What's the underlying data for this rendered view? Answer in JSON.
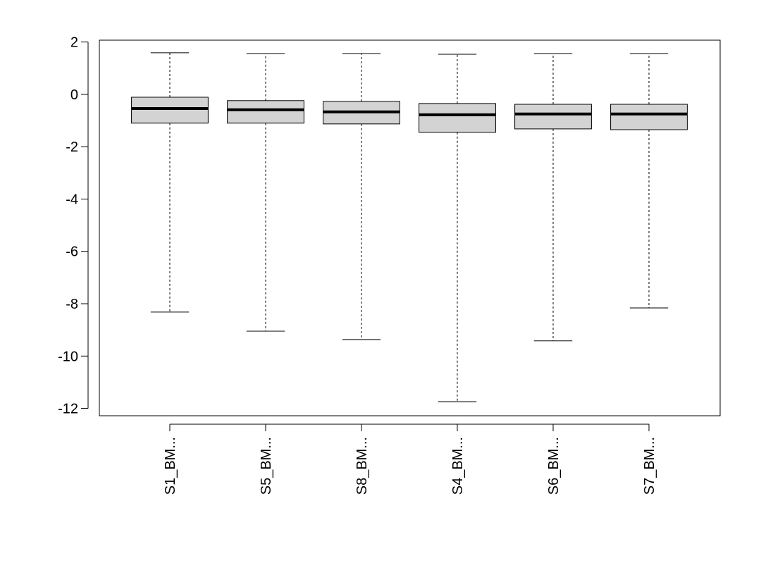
{
  "chart_data": {
    "type": "boxplot",
    "categories": [
      "S1_BM...",
      "S5_BM...",
      "S8_BM...",
      "S4_BM...",
      "S6_BM...",
      "S7_BM..."
    ],
    "boxes": [
      {
        "min": -8.32,
        "q1": -1.1,
        "median": -0.54,
        "q3": -0.11,
        "max": 1.59
      },
      {
        "min": -9.05,
        "q1": -1.1,
        "median": -0.59,
        "q3": -0.24,
        "max": 1.56
      },
      {
        "min": -9.37,
        "q1": -1.13,
        "median": -0.67,
        "q3": -0.27,
        "max": 1.56
      },
      {
        "min": -11.74,
        "q1": -1.45,
        "median": -0.78,
        "q3": -0.35,
        "max": 1.53
      },
      {
        "min": -9.42,
        "q1": -1.32,
        "median": -0.75,
        "q3": -0.38,
        "max": 1.56
      },
      {
        "min": -8.16,
        "q1": -1.35,
        "median": -0.75,
        "q3": -0.38,
        "max": 1.56
      }
    ],
    "color": "#d3d3d3",
    "ylim": [
      -12.28,
      2.07
    ],
    "yticks": [
      2,
      0,
      -2,
      -4,
      -6,
      -8,
      -10,
      -12
    ]
  }
}
